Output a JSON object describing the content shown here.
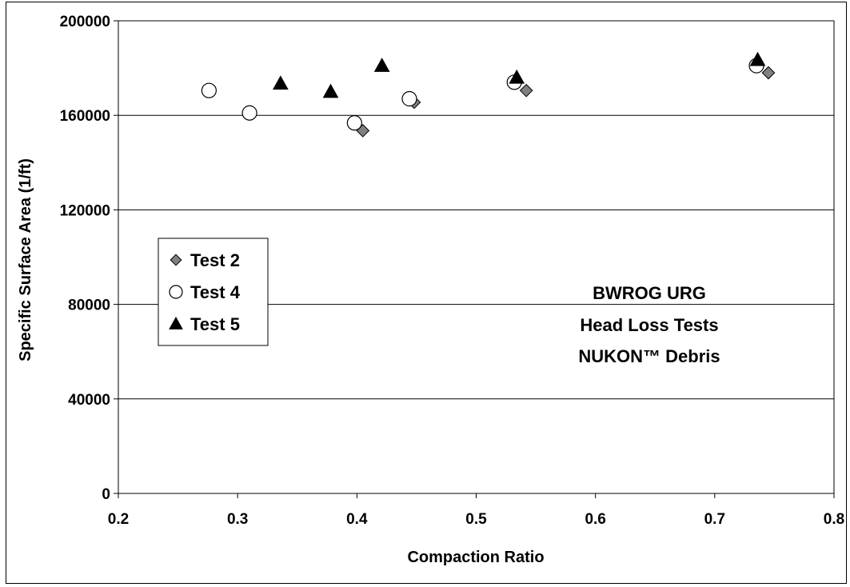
{
  "chart_data": {
    "type": "scatter",
    "title": "",
    "xlabel": "Compaction Ratio",
    "ylabel": "Specific Surface Area (1/ft)",
    "xlim": [
      0.2,
      0.8
    ],
    "ylim": [
      0,
      200000
    ],
    "xticks": [
      "0.2",
      "0.3",
      "0.4",
      "0.5",
      "0.6",
      "0.7",
      "0.8"
    ],
    "yticks": [
      "0",
      "40000",
      "80000",
      "120000",
      "160000",
      "200000"
    ],
    "grid": "horizontal",
    "legend_position": "left-middle",
    "annotation": [
      "BWROG URG",
      "Head Loss Tests",
      "NUKON™ Debris"
    ],
    "series": [
      {
        "name": "Test 2",
        "marker": "diamond",
        "color": "#808080",
        "points": [
          [
            0.405,
            153500
          ],
          [
            0.448,
            165500
          ],
          [
            0.542,
            170500
          ],
          [
            0.745,
            178000
          ]
        ]
      },
      {
        "name": "Test 4",
        "marker": "circle",
        "color": "#ffffff",
        "points": [
          [
            0.276,
            170500
          ],
          [
            0.31,
            161000
          ],
          [
            0.398,
            156800
          ],
          [
            0.444,
            167000
          ],
          [
            0.532,
            174000
          ],
          [
            0.735,
            181000
          ]
        ]
      },
      {
        "name": "Test 5",
        "marker": "triangle",
        "color": "#000000",
        "points": [
          [
            0.336,
            173500
          ],
          [
            0.378,
            170000
          ],
          [
            0.421,
            181000
          ],
          [
            0.534,
            176000
          ],
          [
            0.736,
            183500
          ]
        ]
      }
    ]
  }
}
